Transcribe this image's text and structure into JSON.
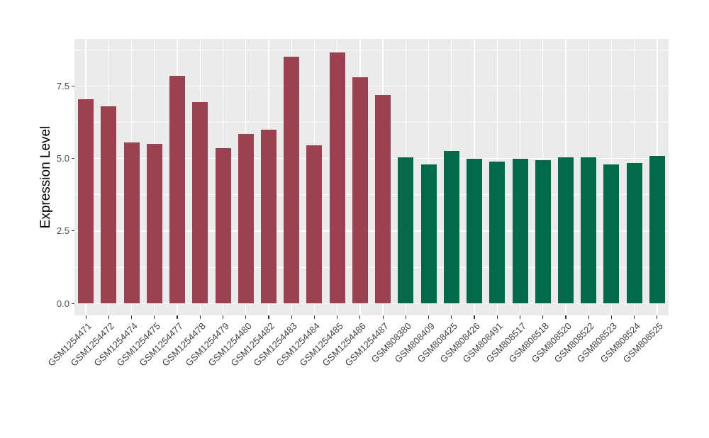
{
  "chart_data": {
    "type": "bar",
    "title": "",
    "xlabel": "",
    "ylabel": "Expression Level",
    "ytick_labels": [
      "0.0",
      "2.5",
      "5.0",
      "7.5"
    ],
    "ytick_values": [
      0,
      2.5,
      5.0,
      7.5
    ],
    "ytick_minor_values": [
      1.25,
      3.75,
      6.25,
      8.75
    ],
    "ylim": [
      -0.41,
      9.12
    ],
    "grid": "major-and-minor, white on grey panel",
    "legend": "none",
    "panel_bg": "#EBEBEB",
    "grid_color": "#FFFFFF",
    "axis_text_color": "#4D4D4D",
    "groups": [
      {
        "id": "GSM1254xxx-group",
        "color": "#9A4252"
      },
      {
        "id": "GSM808xxx-group",
        "color": "#026A4A"
      }
    ],
    "bars": [
      {
        "label": "GSM1254471",
        "value": 7.05,
        "group": 0
      },
      {
        "label": "GSM1254472",
        "value": 6.8,
        "group": 0
      },
      {
        "label": "GSM1254474",
        "value": 5.55,
        "group": 0
      },
      {
        "label": "GSM1254475",
        "value": 5.5,
        "group": 0
      },
      {
        "label": "GSM1254477",
        "value": 7.85,
        "group": 0
      },
      {
        "label": "GSM1254478",
        "value": 6.95,
        "group": 0
      },
      {
        "label": "GSM1254479",
        "value": 5.35,
        "group": 0
      },
      {
        "label": "GSM1254480",
        "value": 5.85,
        "group": 0
      },
      {
        "label": "GSM1254482",
        "value": 6.0,
        "group": 0
      },
      {
        "label": "GSM1254483",
        "value": 8.5,
        "group": 0
      },
      {
        "label": "GSM1254484",
        "value": 5.45,
        "group": 0
      },
      {
        "label": "GSM1254485",
        "value": 8.65,
        "group": 0
      },
      {
        "label": "GSM1254486",
        "value": 7.8,
        "group": 0
      },
      {
        "label": "GSM1254487",
        "value": 7.2,
        "group": 0
      },
      {
        "label": "GSM808380",
        "value": 5.05,
        "group": 1
      },
      {
        "label": "GSM808409",
        "value": 4.8,
        "group": 1
      },
      {
        "label": "GSM808425",
        "value": 5.25,
        "group": 1
      },
      {
        "label": "GSM808426",
        "value": 5.0,
        "group": 1
      },
      {
        "label": "GSM808491",
        "value": 4.9,
        "group": 1
      },
      {
        "label": "GSM808517",
        "value": 5.0,
        "group": 1
      },
      {
        "label": "GSM808518",
        "value": 4.95,
        "group": 1
      },
      {
        "label": "GSM808520",
        "value": 5.05,
        "group": 1
      },
      {
        "label": "GSM808522",
        "value": 5.05,
        "group": 1
      },
      {
        "label": "GSM808523",
        "value": 4.8,
        "group": 1
      },
      {
        "label": "GSM808524",
        "value": 4.85,
        "group": 1
      },
      {
        "label": "GSM808525",
        "value": 5.1,
        "group": 1
      }
    ]
  }
}
